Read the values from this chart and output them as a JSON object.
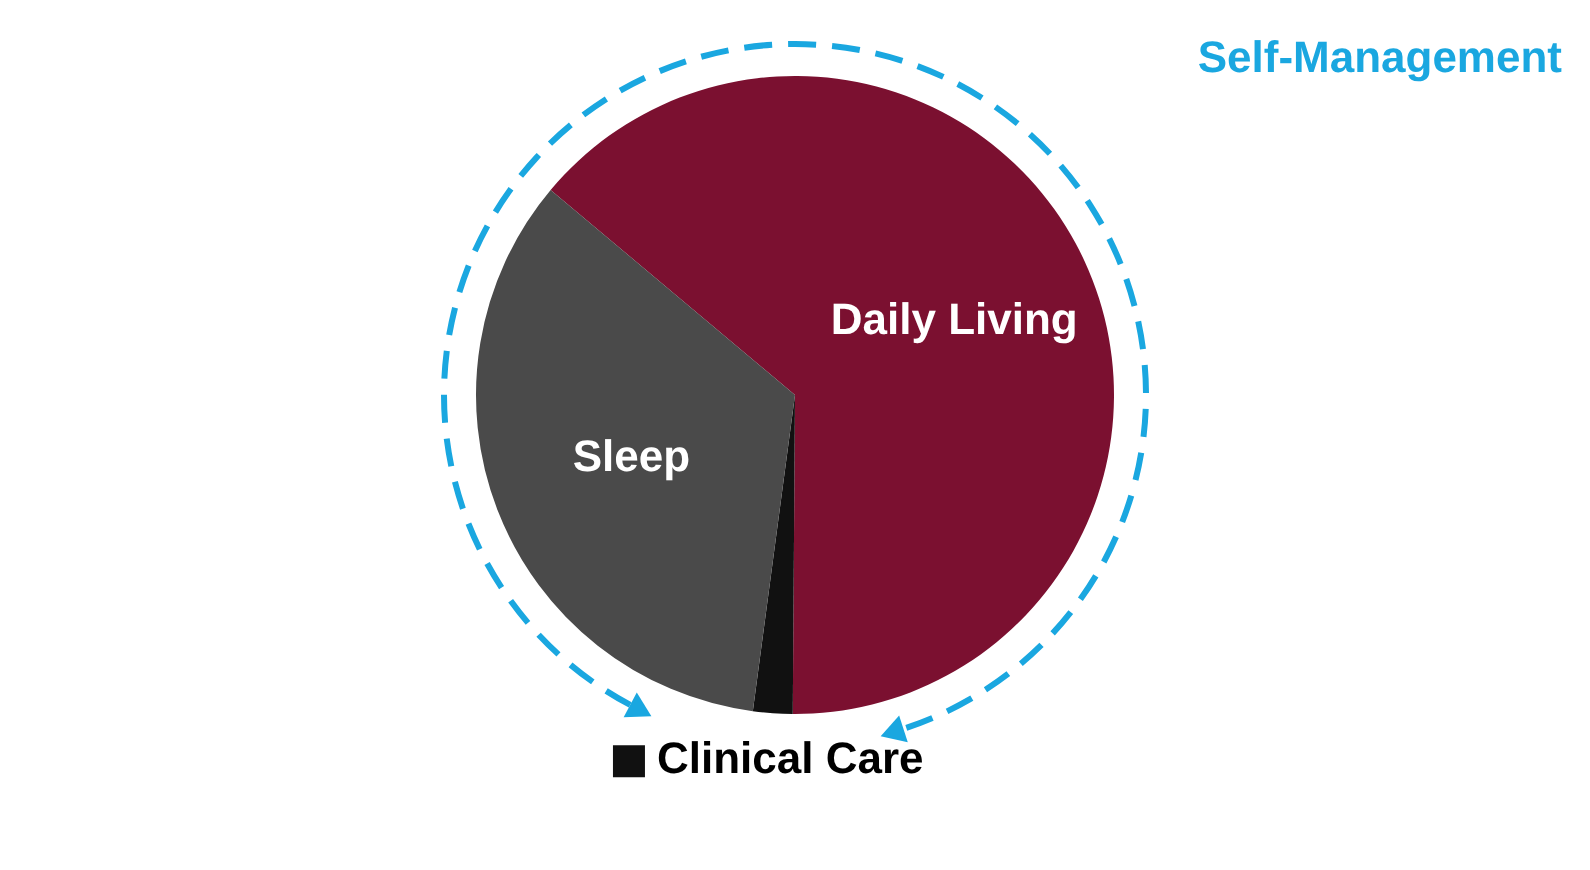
{
  "chart_data": {
    "type": "pie",
    "categories": [
      "Daily Living",
      "Clinical Care",
      "Sleep"
    ],
    "values": [
      64,
      2,
      34
    ],
    "colors": [
      "#7b1030",
      "#111111",
      "#4a4a4a"
    ],
    "annotations": [
      "Self-Management"
    ]
  }
}
